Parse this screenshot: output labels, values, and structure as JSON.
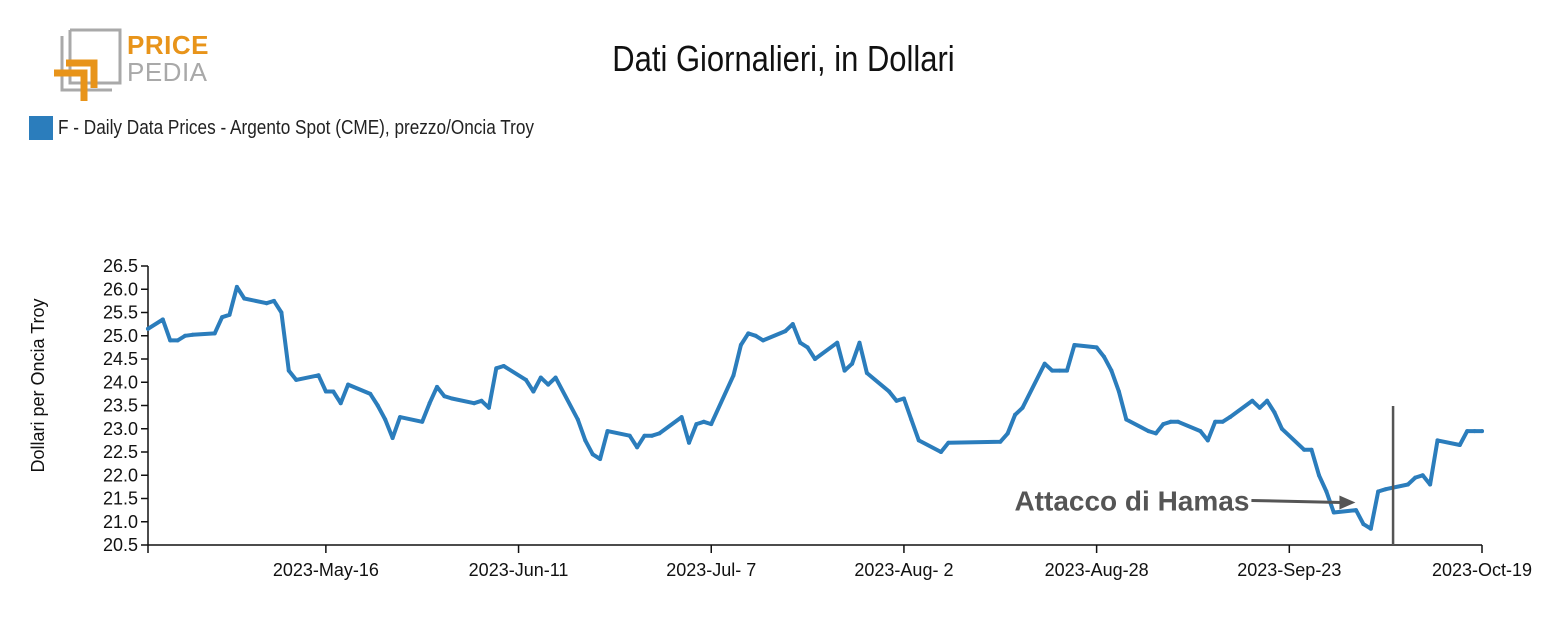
{
  "logo": {
    "word1": "PRICE",
    "word2": "PEDIA",
    "colors": {
      "orange": "#e8941a",
      "gray": "#a9a9a9"
    }
  },
  "chart_data": {
    "type": "line",
    "title": "Dati Giornalieri, in Dollari",
    "ylabel": "Dollari per Oncia Troy",
    "xlabel": "",
    "ylim": [
      20.5,
      26.5
    ],
    "yticks": [
      "26.5",
      "26.0",
      "25.5",
      "25.0",
      "24.5",
      "24.0",
      "23.5",
      "23.0",
      "22.5",
      "22.0",
      "21.5",
      "21.0",
      "20.5"
    ],
    "xlim": [
      "2023-04-22",
      "2023-10-19"
    ],
    "xticks": [
      {
        "date": "2023-05-16",
        "label": "2023-May-16"
      },
      {
        "date": "2023-06-11",
        "label": "2023-Jun-11"
      },
      {
        "date": "2023-07-07",
        "label": "2023-Jul- 7"
      },
      {
        "date": "2023-08-02",
        "label": "2023-Aug- 2"
      },
      {
        "date": "2023-08-28",
        "label": "2023-Aug-28"
      },
      {
        "date": "2023-09-23",
        "label": "2023-Sep-23"
      },
      {
        "date": "2023-10-19",
        "label": "2023-Oct-19"
      }
    ],
    "legend_position": "top-left",
    "grid": false,
    "series": [
      {
        "name": "F - Daily Data Prices - Argento Spot (CME), prezzo/Oncia Troy",
        "color": "#2b7dbc",
        "x": [
          "2023-04-22",
          "2023-04-24",
          "2023-04-25",
          "2023-04-26",
          "2023-04-27",
          "2023-04-28",
          "2023-05-01",
          "2023-05-02",
          "2023-05-03",
          "2023-05-04",
          "2023-05-05",
          "2023-05-08",
          "2023-05-09",
          "2023-05-10",
          "2023-05-11",
          "2023-05-12",
          "2023-05-15",
          "2023-05-16",
          "2023-05-17",
          "2023-05-18",
          "2023-05-19",
          "2023-05-22",
          "2023-05-23",
          "2023-05-24",
          "2023-05-25",
          "2023-05-26",
          "2023-05-29",
          "2023-05-30",
          "2023-05-31",
          "2023-06-01",
          "2023-06-02",
          "2023-06-05",
          "2023-06-06",
          "2023-06-07",
          "2023-06-08",
          "2023-06-09",
          "2023-06-12",
          "2023-06-13",
          "2023-06-14",
          "2023-06-15",
          "2023-06-16",
          "2023-06-19",
          "2023-06-20",
          "2023-06-21",
          "2023-06-22",
          "2023-06-23",
          "2023-06-26",
          "2023-06-27",
          "2023-06-28",
          "2023-06-29",
          "2023-06-30",
          "2023-07-03",
          "2023-07-04",
          "2023-07-05",
          "2023-07-06",
          "2023-07-07",
          "2023-07-10",
          "2023-07-11",
          "2023-07-12",
          "2023-07-13",
          "2023-07-14",
          "2023-07-17",
          "2023-07-18",
          "2023-07-19",
          "2023-07-20",
          "2023-07-21",
          "2023-07-24",
          "2023-07-25",
          "2023-07-26",
          "2023-07-27",
          "2023-07-28",
          "2023-07-31",
          "2023-08-01",
          "2023-08-02",
          "2023-08-03",
          "2023-08-04",
          "2023-08-07",
          "2023-08-08",
          "2023-08-15",
          "2023-08-16",
          "2023-08-17",
          "2023-08-18",
          "2023-08-21",
          "2023-08-22",
          "2023-08-23",
          "2023-08-24",
          "2023-08-25",
          "2023-08-28",
          "2023-08-29",
          "2023-08-30",
          "2023-08-31",
          "2023-09-01",
          "2023-09-04",
          "2023-09-05",
          "2023-09-06",
          "2023-09-07",
          "2023-09-08",
          "2023-09-11",
          "2023-09-12",
          "2023-09-13",
          "2023-09-14",
          "2023-09-15",
          "2023-09-18",
          "2023-09-19",
          "2023-09-20",
          "2023-09-21",
          "2023-09-22",
          "2023-09-25",
          "2023-09-26",
          "2023-09-27",
          "2023-09-28",
          "2023-09-29",
          "2023-10-02",
          "2023-10-03",
          "2023-10-04",
          "2023-10-05",
          "2023-10-06",
          "2023-10-09",
          "2023-10-10",
          "2023-10-11",
          "2023-10-12",
          "2023-10-13",
          "2023-10-16",
          "2023-10-17",
          "2023-10-18",
          "2023-10-19"
        ],
        "y": [
          25.15,
          25.35,
          24.9,
          24.9,
          25.0,
          25.02,
          25.05,
          25.4,
          25.45,
          26.05,
          25.8,
          25.7,
          25.75,
          25.5,
          24.25,
          24.05,
          24.15,
          23.8,
          23.8,
          23.55,
          23.95,
          23.75,
          23.5,
          23.2,
          22.8,
          23.25,
          23.15,
          23.55,
          23.9,
          23.7,
          23.65,
          23.55,
          23.6,
          23.45,
          24.3,
          24.35,
          24.05,
          23.8,
          24.1,
          23.95,
          24.1,
          23.2,
          22.75,
          22.45,
          22.35,
          22.95,
          22.85,
          22.6,
          22.85,
          22.85,
          22.9,
          23.25,
          22.7,
          23.1,
          23.15,
          23.1,
          24.15,
          24.8,
          25.05,
          25.0,
          24.9,
          25.1,
          25.25,
          24.85,
          24.75,
          24.5,
          24.85,
          24.25,
          24.4,
          24.85,
          24.2,
          23.8,
          23.6,
          23.65,
          23.2,
          22.75,
          22.5,
          22.7,
          22.72,
          22.9,
          23.3,
          23.45,
          24.4,
          24.25,
          24.25,
          24.25,
          24.8,
          24.75,
          24.55,
          24.25,
          23.8,
          23.2,
          22.95,
          22.9,
          23.1,
          23.15,
          23.15,
          22.95,
          22.75,
          23.15,
          23.15,
          23.25,
          23.6,
          23.45,
          23.6,
          23.35,
          23.0,
          22.55,
          22.55,
          22.0,
          21.65,
          21.2,
          21.25,
          20.95,
          20.85,
          21.65,
          21.7,
          21.8,
          21.95,
          22.0,
          21.8,
          22.75,
          22.65,
          22.95,
          22.95,
          22.95
        ]
      }
    ],
    "annotations": [
      {
        "text": "Attacco di Hamas",
        "date": "2023-10-07",
        "arrow_to": {
          "date": "2023-10-03",
          "y": 21.2
        }
      }
    ]
  }
}
